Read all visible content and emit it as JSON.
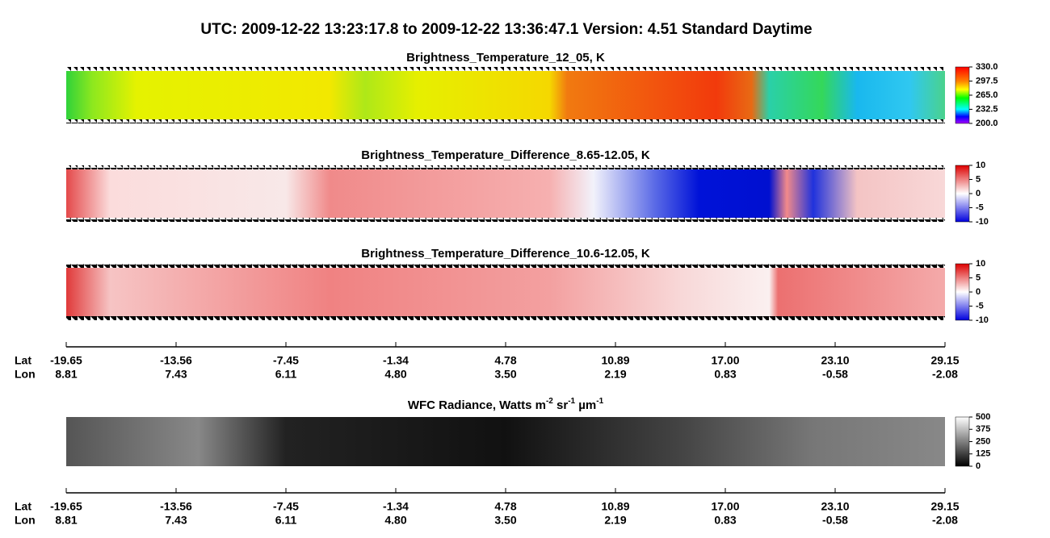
{
  "header": {
    "title": "UTC:  2009-12-22   13:23:17.8  to  2009-12-22   13:36:47.1    Version: 4.51  Standard Daytime"
  },
  "panels": [
    {
      "title": "Brightness_Temperature_12_05, K",
      "colorbar": [
        "330.0",
        "297.5",
        "265.0",
        "232.5",
        "200.0"
      ]
    },
    {
      "title": "Brightness_Temperature_Difference_8.65-12.05, K",
      "colorbar": [
        "10",
        "5",
        "0",
        "-5",
        "-10"
      ]
    },
    {
      "title": "Brightness_Temperature_Difference_10.6-12.05, K",
      "colorbar": [
        "10",
        "5",
        "0",
        "-5",
        "-10"
      ]
    },
    {
      "title": [
        "WFC Radiance, Watts m",
        "-2",
        " sr",
        "-1",
        " µm",
        "-1"
      ],
      "colorbar": [
        "500",
        "375",
        "250",
        "125",
        "0"
      ]
    }
  ],
  "axes": [
    {
      "lat_label": "Lat",
      "lon_label": "Lon",
      "lat": [
        "-19.65",
        "-13.56",
        "-7.45",
        "-1.34",
        "4.78",
        "10.89",
        "17.00",
        "23.10",
        "29.15"
      ],
      "lon": [
        "8.81",
        "7.43",
        "6.11",
        "4.80",
        "3.50",
        "2.19",
        "0.83",
        "-0.58",
        "-2.08"
      ]
    },
    {
      "lat_label": "Lat",
      "lon_label": "Lon",
      "lat": [
        "-19.65",
        "-13.56",
        "-7.45",
        "-1.34",
        "4.78",
        "10.89",
        "17.00",
        "23.10",
        "29.15"
      ],
      "lon": [
        "8.81",
        "7.43",
        "6.11",
        "4.80",
        "3.50",
        "2.19",
        "0.83",
        "-0.58",
        "-2.08"
      ]
    }
  ]
}
